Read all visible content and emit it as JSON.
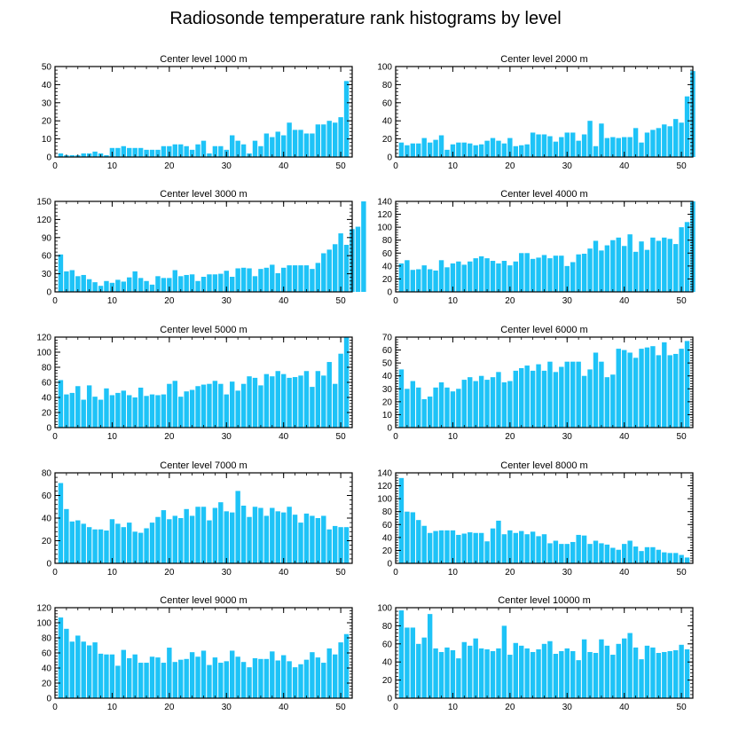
{
  "title": "Radiosonde temperature rank histograms by level",
  "colors": {
    "bar": "#1ec3f7",
    "axis": "#000000"
  },
  "chart_data": [
    {
      "type": "bar",
      "title": "Center level 1000 m",
      "xlim": [
        0,
        52
      ],
      "ylim": [
        0,
        50
      ],
      "xticks": [
        0,
        10,
        20,
        30,
        40,
        50
      ],
      "yticks": [
        0,
        10,
        20,
        30,
        40,
        50
      ],
      "values": [
        2,
        1,
        1,
        1,
        2,
        2,
        3,
        2,
        1,
        5,
        5,
        6,
        5,
        5,
        5,
        4,
        4,
        4,
        6,
        6,
        7,
        7,
        6,
        4,
        7,
        9,
        2,
        6,
        6,
        4,
        12,
        9,
        7,
        2,
        9,
        6,
        13,
        11,
        14,
        12,
        19,
        15,
        15,
        13,
        13,
        18,
        18,
        20,
        19,
        22,
        42
      ]
    },
    {
      "type": "bar",
      "title": "Center level 2000 m",
      "xlim": [
        0,
        52
      ],
      "ylim": [
        0,
        100
      ],
      "xticks": [
        0,
        10,
        20,
        30,
        40,
        50
      ],
      "yticks": [
        0,
        20,
        40,
        60,
        80,
        100
      ],
      "values": [
        16,
        13,
        15,
        15,
        21,
        16,
        19,
        24,
        8,
        14,
        16,
        16,
        15,
        13,
        14,
        18,
        21,
        18,
        15,
        21,
        12,
        13,
        14,
        27,
        25,
        25,
        23,
        17,
        22,
        27,
        27,
        18,
        25,
        40,
        12,
        37,
        21,
        22,
        21,
        22,
        22,
        32,
        16,
        27,
        30,
        32,
        36,
        34,
        42,
        38,
        67,
        95
      ]
    },
    {
      "type": "bar",
      "title": "Center level 3000 m",
      "xlim": [
        0,
        52
      ],
      "ylim": [
        0,
        150
      ],
      "xticks": [
        0,
        10,
        20,
        30,
        40,
        50
      ],
      "yticks": [
        0,
        30,
        60,
        90,
        120,
        150
      ],
      "values": [
        62,
        34,
        36,
        26,
        28,
        21,
        16,
        10,
        18,
        15,
        20,
        17,
        24,
        34,
        23,
        18,
        12,
        26,
        23,
        23,
        36,
        26,
        28,
        29,
        18,
        25,
        29,
        29,
        30,
        35,
        25,
        39,
        40,
        39,
        26,
        38,
        40,
        45,
        31,
        40,
        44,
        44,
        44,
        44,
        38,
        48,
        64,
        70,
        79,
        97,
        78,
        104,
        108,
        150
      ]
    },
    {
      "type": "bar",
      "title": "Center level 4000 m",
      "xlim": [
        0,
        52
      ],
      "ylim": [
        0,
        140
      ],
      "xticks": [
        0,
        10,
        20,
        30,
        40,
        50
      ],
      "yticks": [
        0,
        20,
        40,
        60,
        80,
        100,
        120,
        140
      ],
      "values": [
        44,
        49,
        34,
        35,
        41,
        35,
        33,
        49,
        38,
        44,
        47,
        42,
        47,
        52,
        55,
        52,
        48,
        44,
        48,
        41,
        47,
        60,
        60,
        51,
        53,
        57,
        52,
        56,
        56,
        40,
        46,
        58,
        59,
        67,
        79,
        64,
        72,
        80,
        84,
        71,
        89,
        62,
        78,
        65,
        84,
        79,
        84,
        82,
        74,
        100,
        108,
        140
      ]
    },
    {
      "type": "bar",
      "title": "Center level 5000 m",
      "xlim": [
        0,
        52
      ],
      "ylim": [
        0,
        120
      ],
      "xticks": [
        0,
        10,
        20,
        30,
        40,
        50
      ],
      "yticks": [
        0,
        20,
        40,
        60,
        80,
        100,
        120
      ],
      "values": [
        63,
        44,
        46,
        55,
        37,
        56,
        41,
        37,
        52,
        43,
        46,
        49,
        43,
        40,
        53,
        42,
        44,
        43,
        44,
        58,
        62,
        41,
        48,
        50,
        55,
        57,
        58,
        62,
        58,
        44,
        61,
        49,
        58,
        68,
        66,
        56,
        71,
        68,
        75,
        71,
        66,
        67,
        69,
        75,
        54,
        75,
        69,
        87,
        58,
        98,
        120
      ]
    },
    {
      "type": "bar",
      "title": "Center level 6000 m",
      "xlim": [
        0,
        52
      ],
      "ylim": [
        0,
        70
      ],
      "xticks": [
        0,
        10,
        20,
        30,
        40,
        50
      ],
      "yticks": [
        0,
        10,
        20,
        30,
        40,
        50,
        60,
        70
      ],
      "values": [
        45,
        30,
        36,
        31,
        22,
        24,
        31,
        35,
        31,
        28,
        30,
        37,
        39,
        36,
        40,
        37,
        39,
        43,
        35,
        36,
        44,
        46,
        48,
        44,
        49,
        44,
        51,
        43,
        47,
        51,
        51,
        51,
        40,
        45,
        58,
        51,
        39,
        41,
        61,
        60,
        58,
        54,
        61,
        62,
        63,
        56,
        66,
        56,
        57,
        61,
        67
      ]
    },
    {
      "type": "bar",
      "title": "Center level 7000 m",
      "xlim": [
        0,
        52
      ],
      "ylim": [
        0,
        80
      ],
      "xticks": [
        0,
        10,
        20,
        30,
        40,
        50
      ],
      "yticks": [
        0,
        20,
        40,
        60,
        80
      ],
      "values": [
        71,
        48,
        37,
        38,
        35,
        32,
        30,
        30,
        29,
        39,
        35,
        32,
        36,
        28,
        27,
        31,
        36,
        41,
        47,
        39,
        42,
        40,
        48,
        42,
        50,
        50,
        38,
        49,
        54,
        46,
        45,
        64,
        51,
        41,
        50,
        49,
        42,
        49,
        46,
        45,
        50,
        43,
        36,
        44,
        42,
        40,
        42,
        30,
        33,
        32,
        32
      ]
    },
    {
      "type": "bar",
      "title": "Center level 8000 m",
      "xlim": [
        0,
        52
      ],
      "ylim": [
        0,
        140
      ],
      "xticks": [
        0,
        10,
        20,
        30,
        40,
        50
      ],
      "yticks": [
        0,
        20,
        40,
        60,
        80,
        100,
        120,
        140
      ],
      "values": [
        132,
        80,
        79,
        67,
        58,
        47,
        50,
        51,
        51,
        51,
        44,
        46,
        48,
        47,
        47,
        34,
        54,
        66,
        45,
        51,
        47,
        50,
        45,
        49,
        42,
        45,
        31,
        35,
        30,
        30,
        33,
        44,
        43,
        30,
        35,
        31,
        29,
        24,
        21,
        30,
        35,
        26,
        19,
        25,
        25,
        21,
        17,
        16,
        16,
        13,
        9
      ]
    },
    {
      "type": "bar",
      "title": "Center level 9000 m",
      "xlim": [
        0,
        52
      ],
      "ylim": [
        0,
        120
      ],
      "xticks": [
        0,
        10,
        20,
        30,
        40,
        50
      ],
      "yticks": [
        0,
        20,
        40,
        60,
        80,
        100,
        120
      ],
      "values": [
        107,
        92,
        75,
        83,
        75,
        70,
        74,
        59,
        58,
        58,
        43,
        64,
        53,
        58,
        47,
        47,
        55,
        54,
        47,
        67,
        48,
        51,
        52,
        61,
        55,
        63,
        44,
        54,
        47,
        49,
        63,
        55,
        48,
        41,
        53,
        52,
        52,
        62,
        50,
        57,
        49,
        41,
        45,
        51,
        61,
        54,
        47,
        66,
        58,
        74,
        85
      ]
    },
    {
      "type": "bar",
      "title": "Center level 10000 m",
      "xlim": [
        0,
        52
      ],
      "ylim": [
        0,
        100
      ],
      "xticks": [
        0,
        10,
        20,
        30,
        40,
        50
      ],
      "yticks": [
        0,
        20,
        40,
        60,
        80,
        100
      ],
      "values": [
        97,
        78,
        78,
        60,
        67,
        93,
        55,
        51,
        56,
        53,
        44,
        62,
        58,
        66,
        55,
        54,
        52,
        55,
        80,
        48,
        61,
        58,
        55,
        51,
        54,
        60,
        63,
        49,
        52,
        55,
        52,
        42,
        65,
        51,
        50,
        65,
        58,
        48,
        60,
        66,
        72,
        56,
        43,
        58,
        56,
        50,
        51,
        52,
        53,
        59,
        54
      ]
    }
  ]
}
